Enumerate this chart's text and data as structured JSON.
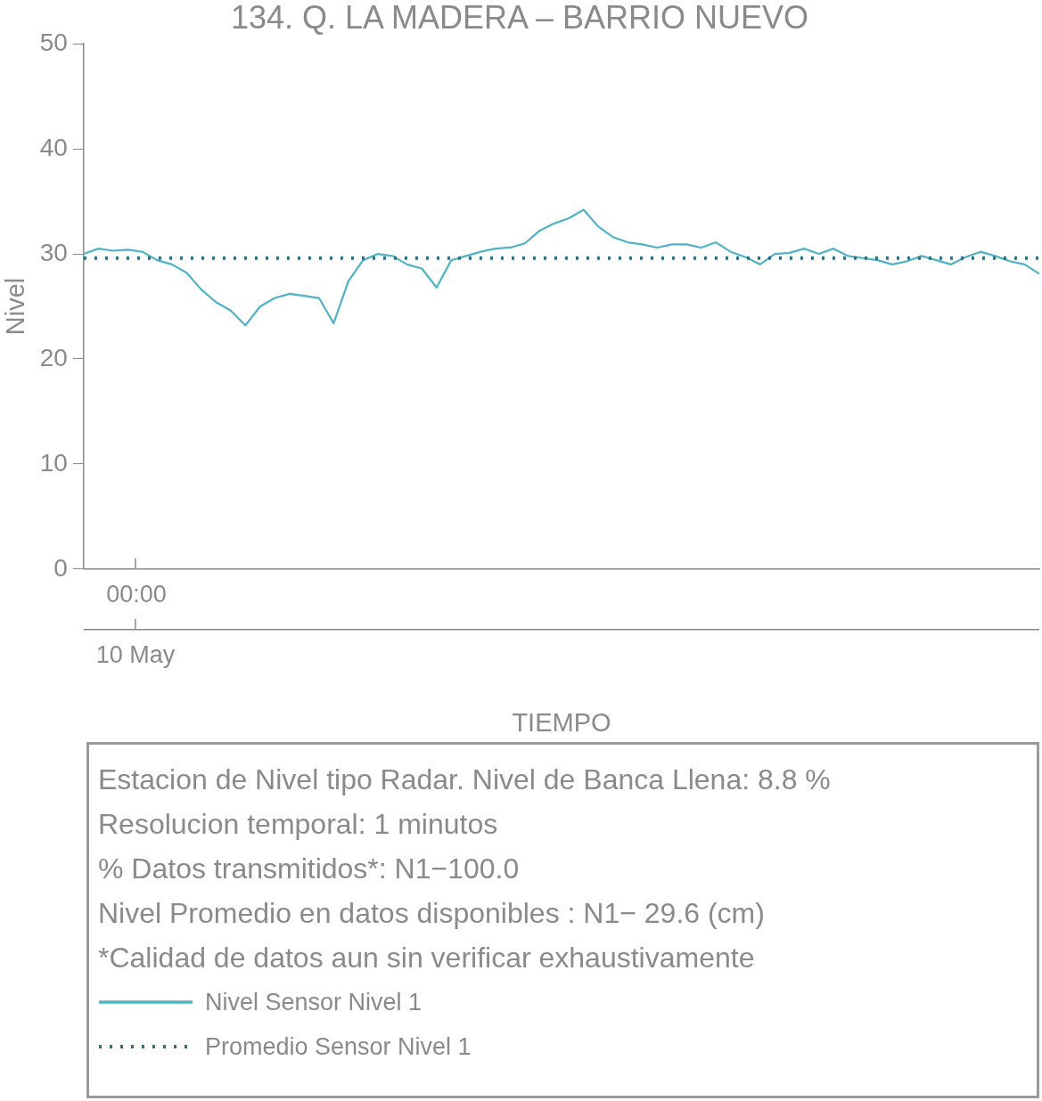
{
  "chart_data": {
    "type": "line",
    "title": "134. Q. LA MADERA – BARRIO NUEVO",
    "xlabel": "TIEMPO",
    "ylabel": "Nivel",
    "categories": [
      null,
      null,
      null,
      null,
      null,
      null,
      null,
      null,
      null,
      null,
      null,
      null,
      null,
      null,
      null,
      null,
      null,
      null,
      null,
      null,
      null,
      null,
      null,
      null,
      null,
      null,
      null,
      null,
      null,
      null,
      null,
      null,
      null,
      null,
      null,
      null,
      null,
      null,
      null,
      null,
      null,
      null,
      null,
      null,
      null,
      null,
      null,
      null,
      null,
      null,
      null,
      null,
      null,
      null,
      null,
      null,
      null,
      null,
      null,
      null,
      null,
      null,
      null,
      null,
      null,
      null
    ],
    "ylim": [
      0,
      50
    ],
    "yticks": [
      0,
      10,
      20,
      30,
      40,
      50
    ],
    "grid": false,
    "marker": "none",
    "legend": "bottom",
    "annotations": [
      "00:00",
      "10 May",
      "Estacion de Nivel tipo Radar. Nivel de Banca Llena:  8.8 %",
      "Resolucion temporal: 1 minutos",
      "% Datos transmitidos*: N1−100.0",
      "Nivel Promedio en datos disponibles : N1− 29.6 (cm)",
      "*Calidad de datos aun sin verificar exhaustivamente"
    ],
    "ref_lines": [
      {
        "axis": "y",
        "value": 29.6,
        "label": "Promedio Sensor Nivel 1",
        "color": "#2e6f85",
        "line_style": "dotted"
      }
    ],
    "series": [
      {
        "name": "Nivel Sensor Nivel 1",
        "color": "#4fb3c4",
        "line_style": "solid",
        "values": [
          30.0,
          30.5,
          30.3,
          30.4,
          30.2,
          29.4,
          29.0,
          28.2,
          26.6,
          25.4,
          24.6,
          23.2,
          25.0,
          25.8,
          26.2,
          26.0,
          25.8,
          23.4,
          27.4,
          29.4,
          30.0,
          29.8,
          29.0,
          28.6,
          26.8,
          29.4,
          29.8,
          30.2,
          30.5,
          30.6,
          31.0,
          32.2,
          32.9,
          33.4,
          34.2,
          32.6,
          31.6,
          31.1,
          30.9,
          30.6,
          30.9,
          30.9,
          30.6,
          31.1,
          30.2,
          29.7,
          29.0,
          30.0,
          30.1,
          30.5,
          30.0,
          30.5,
          29.8,
          29.6,
          29.4,
          29.0,
          29.3,
          29.8,
          29.4,
          29.0,
          29.7,
          30.2,
          29.8,
          29.3,
          29.0,
          28.1
        ]
      }
    ]
  }
}
